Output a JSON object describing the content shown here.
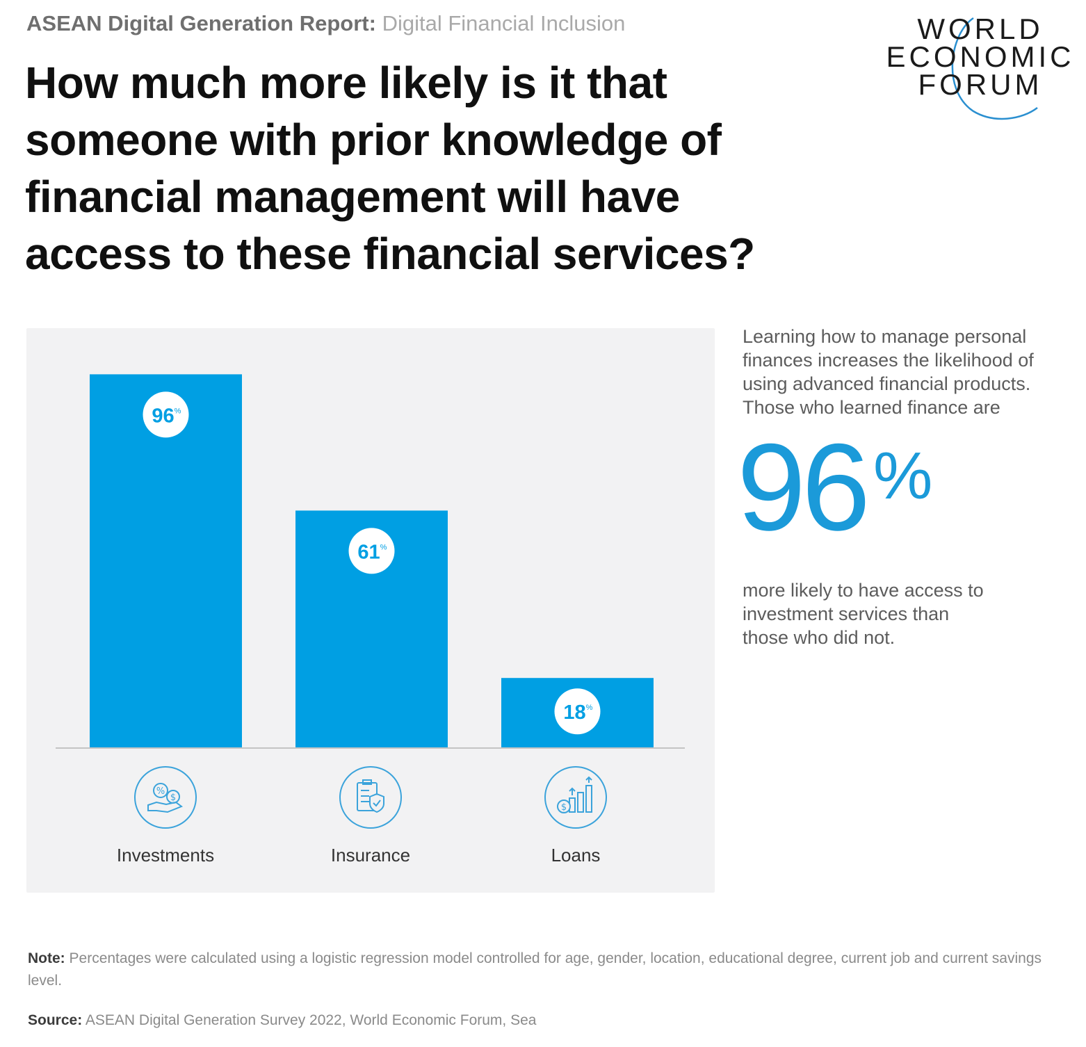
{
  "header": {
    "kicker_bold": "ASEAN Digital Generation Report:",
    "kicker_light": "Digital Financial Inclusion",
    "title": "How much more likely is it that someone with prior knowledge of financial management will have access to these financial services?"
  },
  "logo": {
    "line1": "WORLD",
    "line2": "ECONOMIC",
    "line3": "FORUM"
  },
  "colors": {
    "bar": "#009fe3",
    "accent": "#1b9ad9",
    "panel": "#f2f2f3",
    "axis": "#c4c4c4"
  },
  "chart_data": {
    "type": "bar",
    "categories": [
      "Investments",
      "Insurance",
      "Loans"
    ],
    "values": [
      96,
      61,
      18
    ],
    "value_labels": [
      "96",
      "61",
      "18"
    ],
    "unit": "%",
    "category_icons": [
      "investment-hand-coins-icon",
      "insurance-checklist-shield-icon",
      "loans-growth-coins-icon"
    ],
    "ylim": [
      0,
      100
    ],
    "grid": false,
    "legend": "none"
  },
  "side": {
    "intro": "Learning how to manage personal finances increases the likelihood of using advanced financial products. Those who learned finance are",
    "stat_number": "96",
    "stat_unit": "%",
    "outro": "more likely to have access to investment services than those who did not."
  },
  "footer": {
    "note_label": "Note:",
    "note_text": "Percentages were calculated using a logistic regression model controlled for age, gender, location, educational degree, current job and current savings level.",
    "source_label": "Source:",
    "source_text": "ASEAN Digital Generation Survey 2022, World Economic Forum, Sea"
  }
}
